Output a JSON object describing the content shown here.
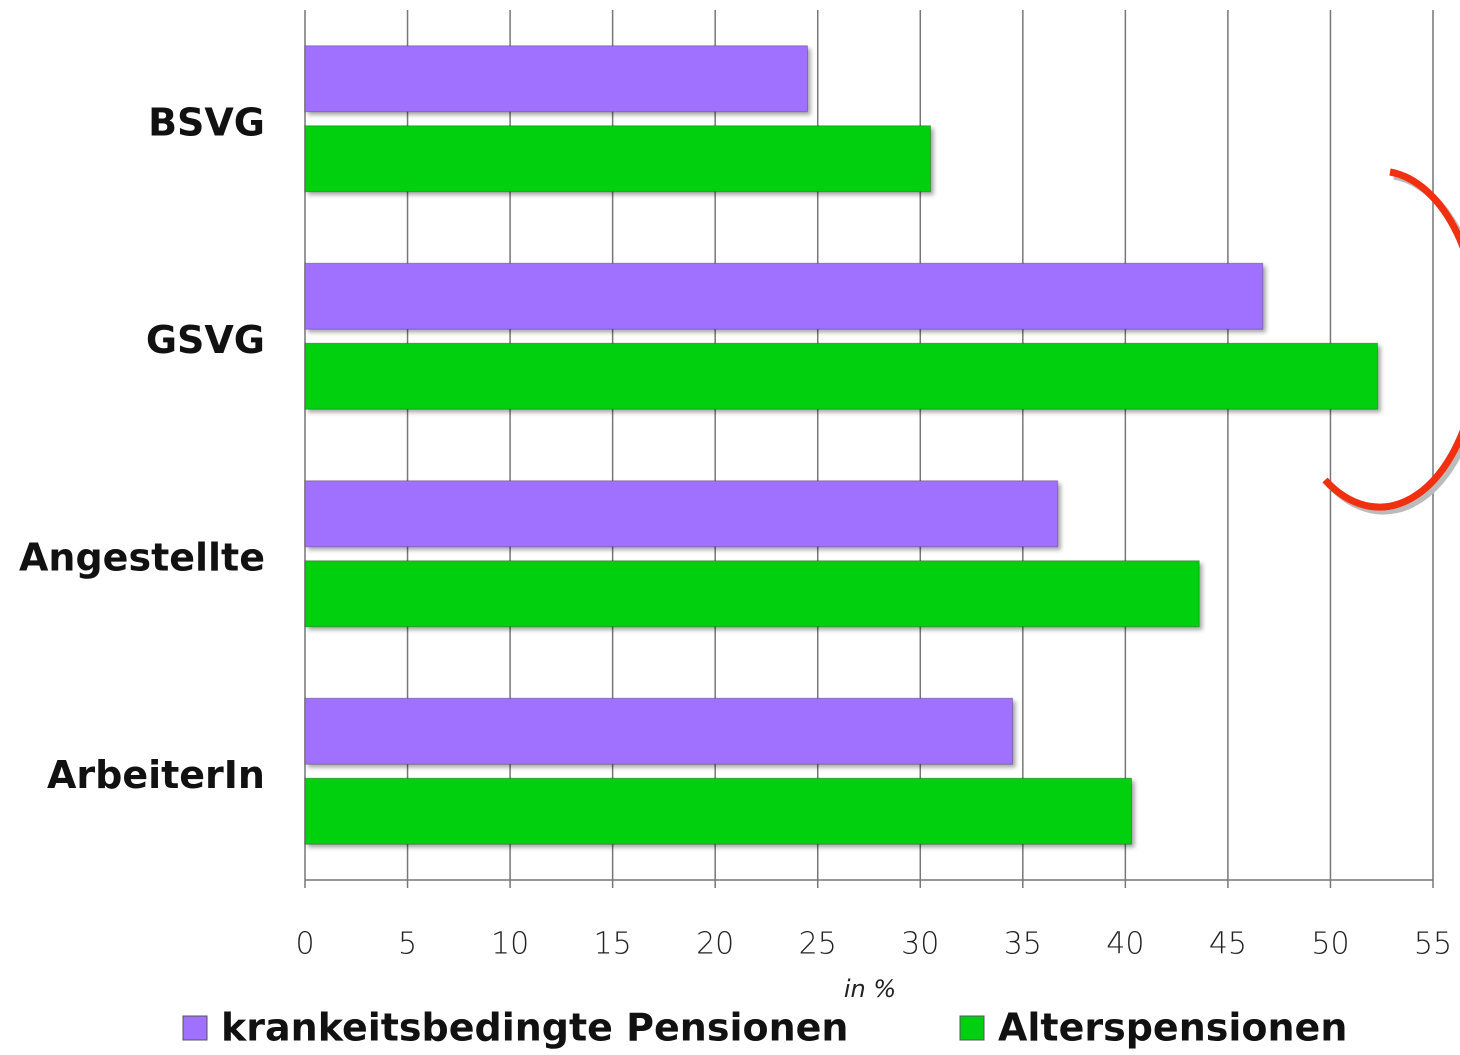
{
  "chart_data": {
    "type": "barh",
    "categories": [
      "BSVG",
      "GSVG",
      "Angestellte",
      "ArbeiterIn"
    ],
    "series": [
      {
        "name": "krankeitsbedingte Pensionen",
        "color": "#a070ff",
        "values": [
          24.5,
          46.7,
          36.7,
          34.5
        ]
      },
      {
        "name": "Alterspensionen",
        "color": "#00d010",
        "values": [
          30.5,
          52.3,
          43.6,
          40.3
        ]
      }
    ],
    "xlabel": "in %",
    "xlim": [
      0,
      55
    ],
    "xticks": [
      0,
      5,
      10,
      15,
      20,
      25,
      30,
      35,
      40,
      45,
      50,
      55
    ],
    "grid": true,
    "legend": "bottom"
  }
}
